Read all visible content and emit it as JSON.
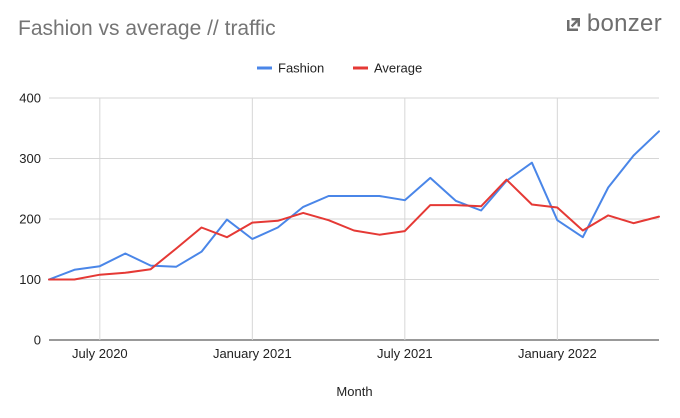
{
  "title": "Fashion vs average // traffic",
  "brand": {
    "name": "bonzer",
    "icon": "bonzer-logo-arrow-icon"
  },
  "chart_data": {
    "type": "line",
    "title": "Fashion vs average // traffic",
    "xlabel": "Month",
    "ylabel": "",
    "ylim": [
      0,
      400
    ],
    "yticks": [
      0,
      100,
      200,
      300,
      400
    ],
    "grid": true,
    "legend": "top-center",
    "x": [
      "2020-05",
      "2020-06",
      "2020-07",
      "2020-08",
      "2020-09",
      "2020-10",
      "2020-11",
      "2020-12",
      "2021-01",
      "2021-02",
      "2021-03",
      "2021-04",
      "2021-05",
      "2021-06",
      "2021-07",
      "2021-08",
      "2021-09",
      "2021-10",
      "2021-11",
      "2021-12",
      "2022-01",
      "2022-02",
      "2022-03",
      "2022-04",
      "2022-05"
    ],
    "xticks": [
      {
        "label": "July 2020",
        "at": "2020-07"
      },
      {
        "label": "January 2021",
        "at": "2021-01"
      },
      {
        "label": "July 2021",
        "at": "2021-07"
      },
      {
        "label": "January 2022",
        "at": "2022-01"
      }
    ],
    "series": [
      {
        "name": "Fashion",
        "color": "#4a86e8",
        "values": [
          100,
          116,
          122,
          143,
          123,
          121,
          146,
          199,
          167,
          186,
          220,
          238,
          238,
          238,
          231,
          268,
          230,
          214,
          263,
          293,
          198,
          170,
          252,
          305,
          345
        ]
      },
      {
        "name": "Average",
        "color": "#e53935",
        "values": [
          100,
          100,
          108,
          111,
          117,
          151,
          186,
          170,
          194,
          197,
          210,
          198,
          181,
          174,
          180,
          223,
          223,
          221,
          265,
          224,
          219,
          181,
          206,
          193,
          204
        ]
      }
    ]
  }
}
